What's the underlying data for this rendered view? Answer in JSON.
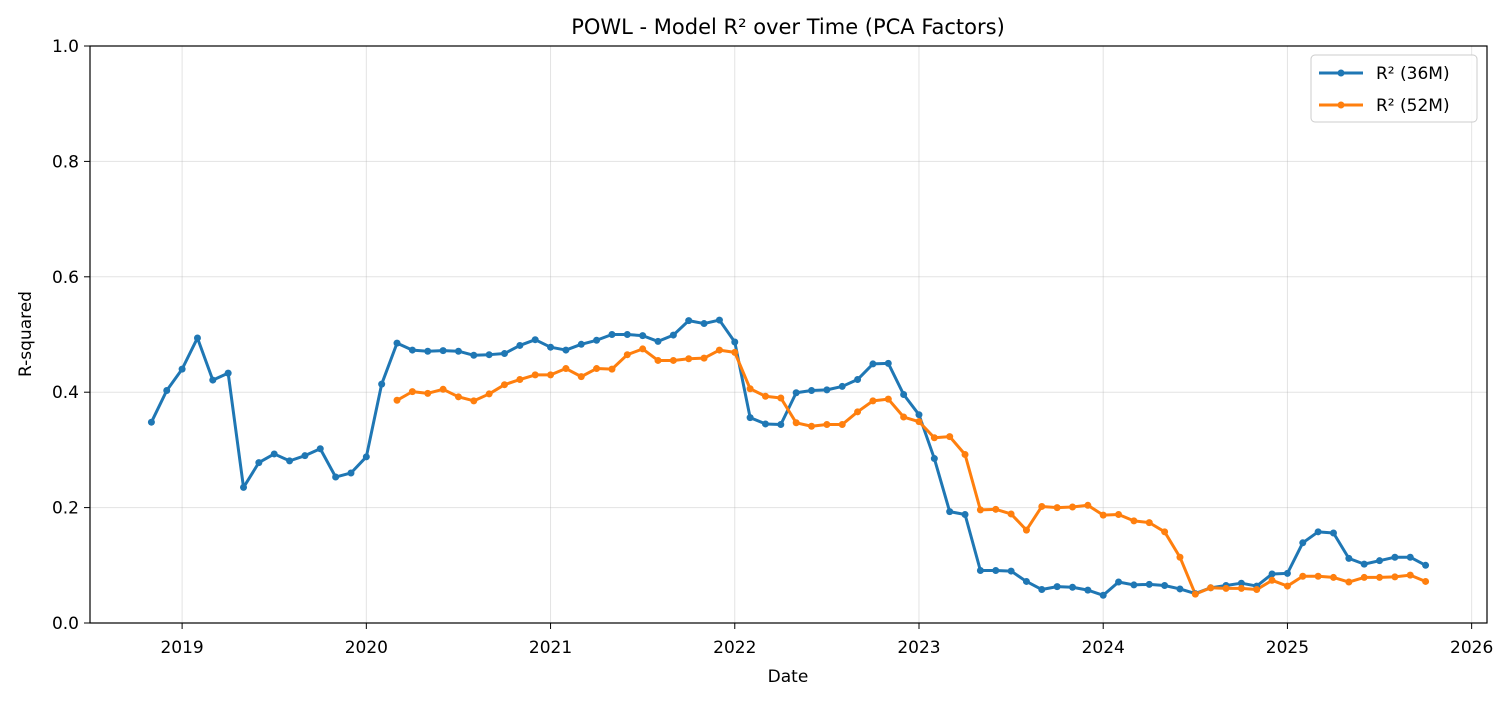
{
  "chart_data": {
    "type": "line",
    "title": "POWL - Model R² over Time (PCA Factors)",
    "xlabel": "Date",
    "ylabel": "R-squared",
    "xlim": [
      "2018-07-01",
      "2026-02-01"
    ],
    "ylim": [
      0,
      1
    ],
    "x_ticks": [
      "2019",
      "2020",
      "2021",
      "2022",
      "2023",
      "2024",
      "2025",
      "2026"
    ],
    "y_ticks": [
      "0.0",
      "0.2",
      "0.4",
      "0.6",
      "0.8",
      "1.0"
    ],
    "grid": true,
    "legend": "top-right",
    "series": [
      {
        "name": "R² (36M)",
        "color": "#1f77b4",
        "start": "2018-11",
        "values": [
          0.348,
          0.403,
          0.44,
          0.494,
          0.421,
          0.433,
          0.235,
          0.278,
          0.293,
          0.281,
          0.29,
          0.302,
          0.253,
          0.26,
          0.288,
          0.414,
          0.485,
          0.473,
          0.471,
          0.472,
          0.471,
          0.464,
          0.465,
          0.467,
          0.481,
          0.491,
          0.478,
          0.473,
          0.483,
          0.49,
          0.5,
          0.5,
          0.498,
          0.488,
          0.499,
          0.524,
          0.519,
          0.525,
          0.487,
          0.356,
          0.345,
          0.344,
          0.399,
          0.403,
          0.404,
          0.41,
          0.422,
          0.449,
          0.45,
          0.396,
          0.361,
          0.285,
          0.193,
          0.188,
          0.091,
          0.091,
          0.09,
          0.072,
          0.058,
          0.063,
          0.062,
          0.057,
          0.048,
          0.071,
          0.066,
          0.067,
          0.065,
          0.059,
          0.051,
          0.061,
          0.065,
          0.069,
          0.064,
          0.085,
          0.086,
          0.139,
          0.158,
          0.156,
          0.112,
          0.102,
          0.108,
          0.114,
          0.114,
          0.1
        ]
      },
      {
        "name": "R² (52M)",
        "color": "#ff7f0e",
        "start": "2020-03",
        "values": [
          0.386,
          0.401,
          0.398,
          0.405,
          0.392,
          0.385,
          0.397,
          0.413,
          0.422,
          0.43,
          0.43,
          0.441,
          0.427,
          0.441,
          0.44,
          0.465,
          0.475,
          0.455,
          0.455,
          0.458,
          0.459,
          0.473,
          0.469,
          0.406,
          0.393,
          0.39,
          0.347,
          0.341,
          0.344,
          0.344,
          0.366,
          0.385,
          0.388,
          0.357,
          0.349,
          0.321,
          0.323,
          0.292,
          0.196,
          0.197,
          0.189,
          0.161,
          0.202,
          0.2,
          0.201,
          0.204,
          0.187,
          0.188,
          0.177,
          0.174,
          0.158,
          0.114,
          0.05,
          0.061,
          0.06,
          0.06,
          0.058,
          0.074,
          0.064,
          0.081,
          0.081,
          0.079,
          0.071,
          0.079,
          0.079,
          0.08,
          0.083,
          0.072
        ]
      }
    ]
  }
}
